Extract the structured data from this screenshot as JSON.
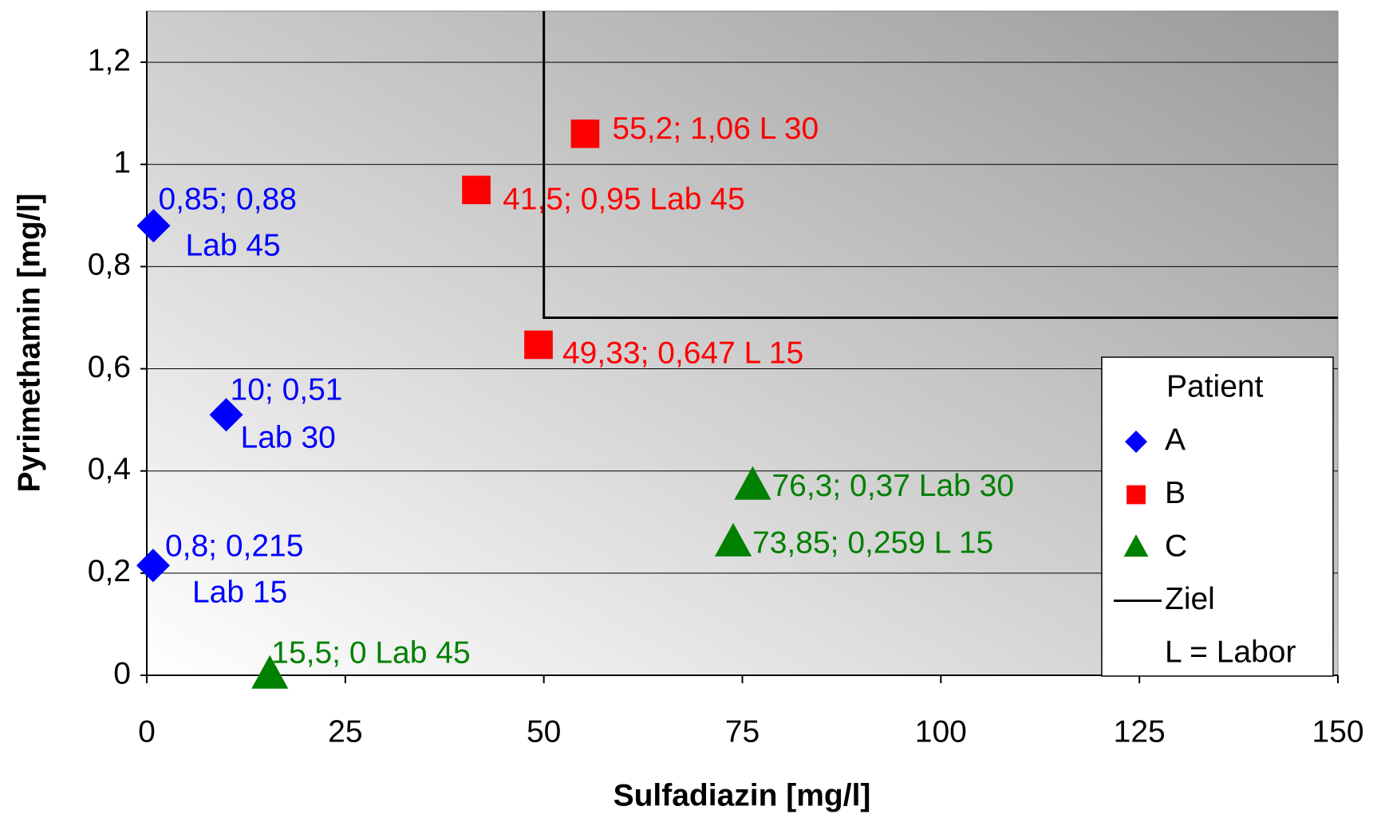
{
  "chart_data": {
    "type": "scatter",
    "xlabel": "Sulfadiazin [mg/l]",
    "ylabel": "Pyrimethamin [mg/l]",
    "xlim": [
      0,
      150
    ],
    "xticks": [
      0,
      25,
      50,
      75,
      100,
      125,
      150
    ],
    "ylim": [
      0,
      1.3
    ],
    "yticks": [
      0,
      {
        "value": 0.2,
        "label": "0,2"
      },
      {
        "value": 0.4,
        "label": "0,4"
      },
      {
        "value": 0.6,
        "label": "0,6"
      },
      {
        "value": 0.8,
        "label": "0,8"
      },
      1,
      {
        "value": 1.2,
        "label": "1,2"
      }
    ],
    "grid": true,
    "legend_title": "Patient",
    "legend_note": "L = Labor",
    "series": [
      {
        "name": "A",
        "color": "#0000ff",
        "marker": "diamond",
        "x": [
          0.85,
          10,
          0.8
        ],
        "values": [
          0.88,
          0.51,
          0.215
        ],
        "value_labels": [
          [
            "0,85; 0,88",
            "Lab 45"
          ],
          [
            "10; 0,51",
            "Lab 30"
          ],
          [
            "0,8; 0,215",
            "Lab 15"
          ]
        ]
      },
      {
        "name": "B",
        "color": "#ff0000",
        "marker": "square",
        "x": [
          55.2,
          41.5,
          49.33
        ],
        "values": [
          1.06,
          0.95,
          0.647
        ],
        "value_labels": [
          [
            "55,2; 1,06  L 30"
          ],
          [
            "41,5; 0,95 Lab 45"
          ],
          [
            "49,33; 0,647 L 15"
          ]
        ]
      },
      {
        "name": "C",
        "color": "#008000",
        "marker": "triangle",
        "x": [
          76.3,
          73.85,
          15.5
        ],
        "values": [
          0.37,
          0.259,
          0
        ],
        "value_labels": [
          [
            "76,3; 0,37 Lab 30"
          ],
          [
            "73,85; 0,259 L 15"
          ],
          [
            "15,5; 0 Lab 45"
          ]
        ]
      },
      {
        "name": "Ziel",
        "color": "#000000",
        "marker": "line",
        "x": [
          50,
          50,
          150
        ],
        "values": [
          1.3,
          0.7,
          0.7
        ]
      }
    ]
  }
}
